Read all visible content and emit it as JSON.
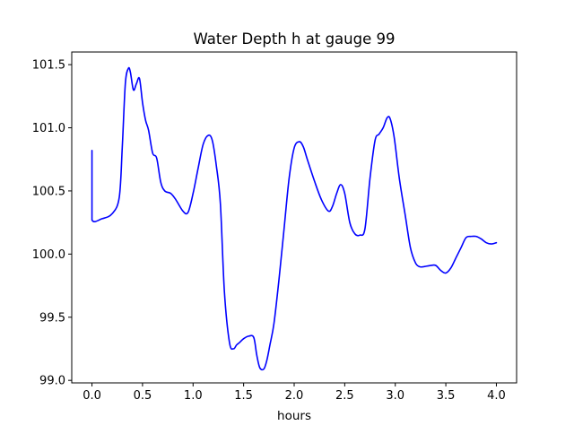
{
  "chart_data": {
    "type": "line",
    "title": "Water Depth h at gauge 99",
    "xlabel": "hours",
    "ylabel": "",
    "xlim": [
      -0.2,
      4.2
    ],
    "ylim": [
      98.98,
      101.6
    ],
    "xticks": [
      0.0,
      0.5,
      1.0,
      1.5,
      2.0,
      2.5,
      3.0,
      3.5,
      4.0
    ],
    "xtick_labels": [
      "0.0",
      "0.5",
      "1.0",
      "1.5",
      "2.0",
      "2.5",
      "3.0",
      "3.5",
      "4.0"
    ],
    "yticks": [
      99.0,
      99.5,
      100.0,
      100.5,
      101.0,
      101.5
    ],
    "ytick_labels": [
      "99.0",
      "99.5",
      "100.0",
      "100.5",
      "101.0",
      "101.5"
    ],
    "grid": false,
    "legend": "none",
    "series": [
      {
        "color": "#0000ff",
        "x": [
          0.0,
          0.0,
          0.0,
          0.1,
          0.2,
          0.27,
          0.3,
          0.33,
          0.36,
          0.38,
          0.41,
          0.44,
          0.47,
          0.5,
          0.53,
          0.56,
          0.6,
          0.64,
          0.68,
          0.72,
          0.78,
          0.83,
          0.9,
          0.95,
          1.0,
          1.05,
          1.1,
          1.15,
          1.19,
          1.23,
          1.27,
          1.31,
          1.36,
          1.4,
          1.43,
          1.46,
          1.5,
          1.55,
          1.6,
          1.63,
          1.66,
          1.7,
          1.73,
          1.76,
          1.8,
          1.85,
          1.9,
          1.95,
          2.0,
          2.05,
          2.09,
          2.13,
          2.2,
          2.27,
          2.34,
          2.38,
          2.42,
          2.46,
          2.5,
          2.55,
          2.6,
          2.65,
          2.7,
          2.75,
          2.8,
          2.84,
          2.88,
          2.92,
          2.95,
          2.99,
          3.04,
          3.1,
          3.15,
          3.2,
          3.24,
          3.28,
          3.35,
          3.4,
          3.45,
          3.5,
          3.55,
          3.6,
          3.65,
          3.7,
          3.75,
          3.8,
          3.85,
          3.9,
          3.95,
          4.0
        ],
        "y": [
          100.82,
          100.47,
          100.27,
          100.28,
          100.32,
          100.45,
          100.85,
          101.35,
          101.47,
          101.44,
          101.3,
          101.35,
          101.39,
          101.2,
          101.06,
          100.98,
          100.8,
          100.76,
          100.57,
          100.5,
          100.48,
          100.43,
          100.34,
          100.33,
          100.48,
          100.68,
          100.87,
          100.94,
          100.9,
          100.7,
          100.4,
          99.7,
          99.3,
          99.25,
          99.28,
          99.3,
          99.33,
          99.35,
          99.34,
          99.2,
          99.1,
          99.09,
          99.16,
          99.28,
          99.45,
          99.8,
          100.2,
          100.6,
          100.84,
          100.89,
          100.85,
          100.75,
          100.58,
          100.43,
          100.34,
          100.38,
          100.48,
          100.55,
          100.48,
          100.25,
          100.16,
          100.15,
          100.2,
          100.6,
          100.9,
          100.95,
          101.0,
          101.08,
          101.07,
          100.92,
          100.6,
          100.3,
          100.05,
          99.93,
          99.9,
          99.9,
          99.91,
          99.91,
          99.87,
          99.85,
          99.89,
          99.97,
          100.05,
          100.13,
          100.14,
          100.14,
          100.12,
          100.09,
          100.08,
          100.09
        ]
      }
    ]
  }
}
